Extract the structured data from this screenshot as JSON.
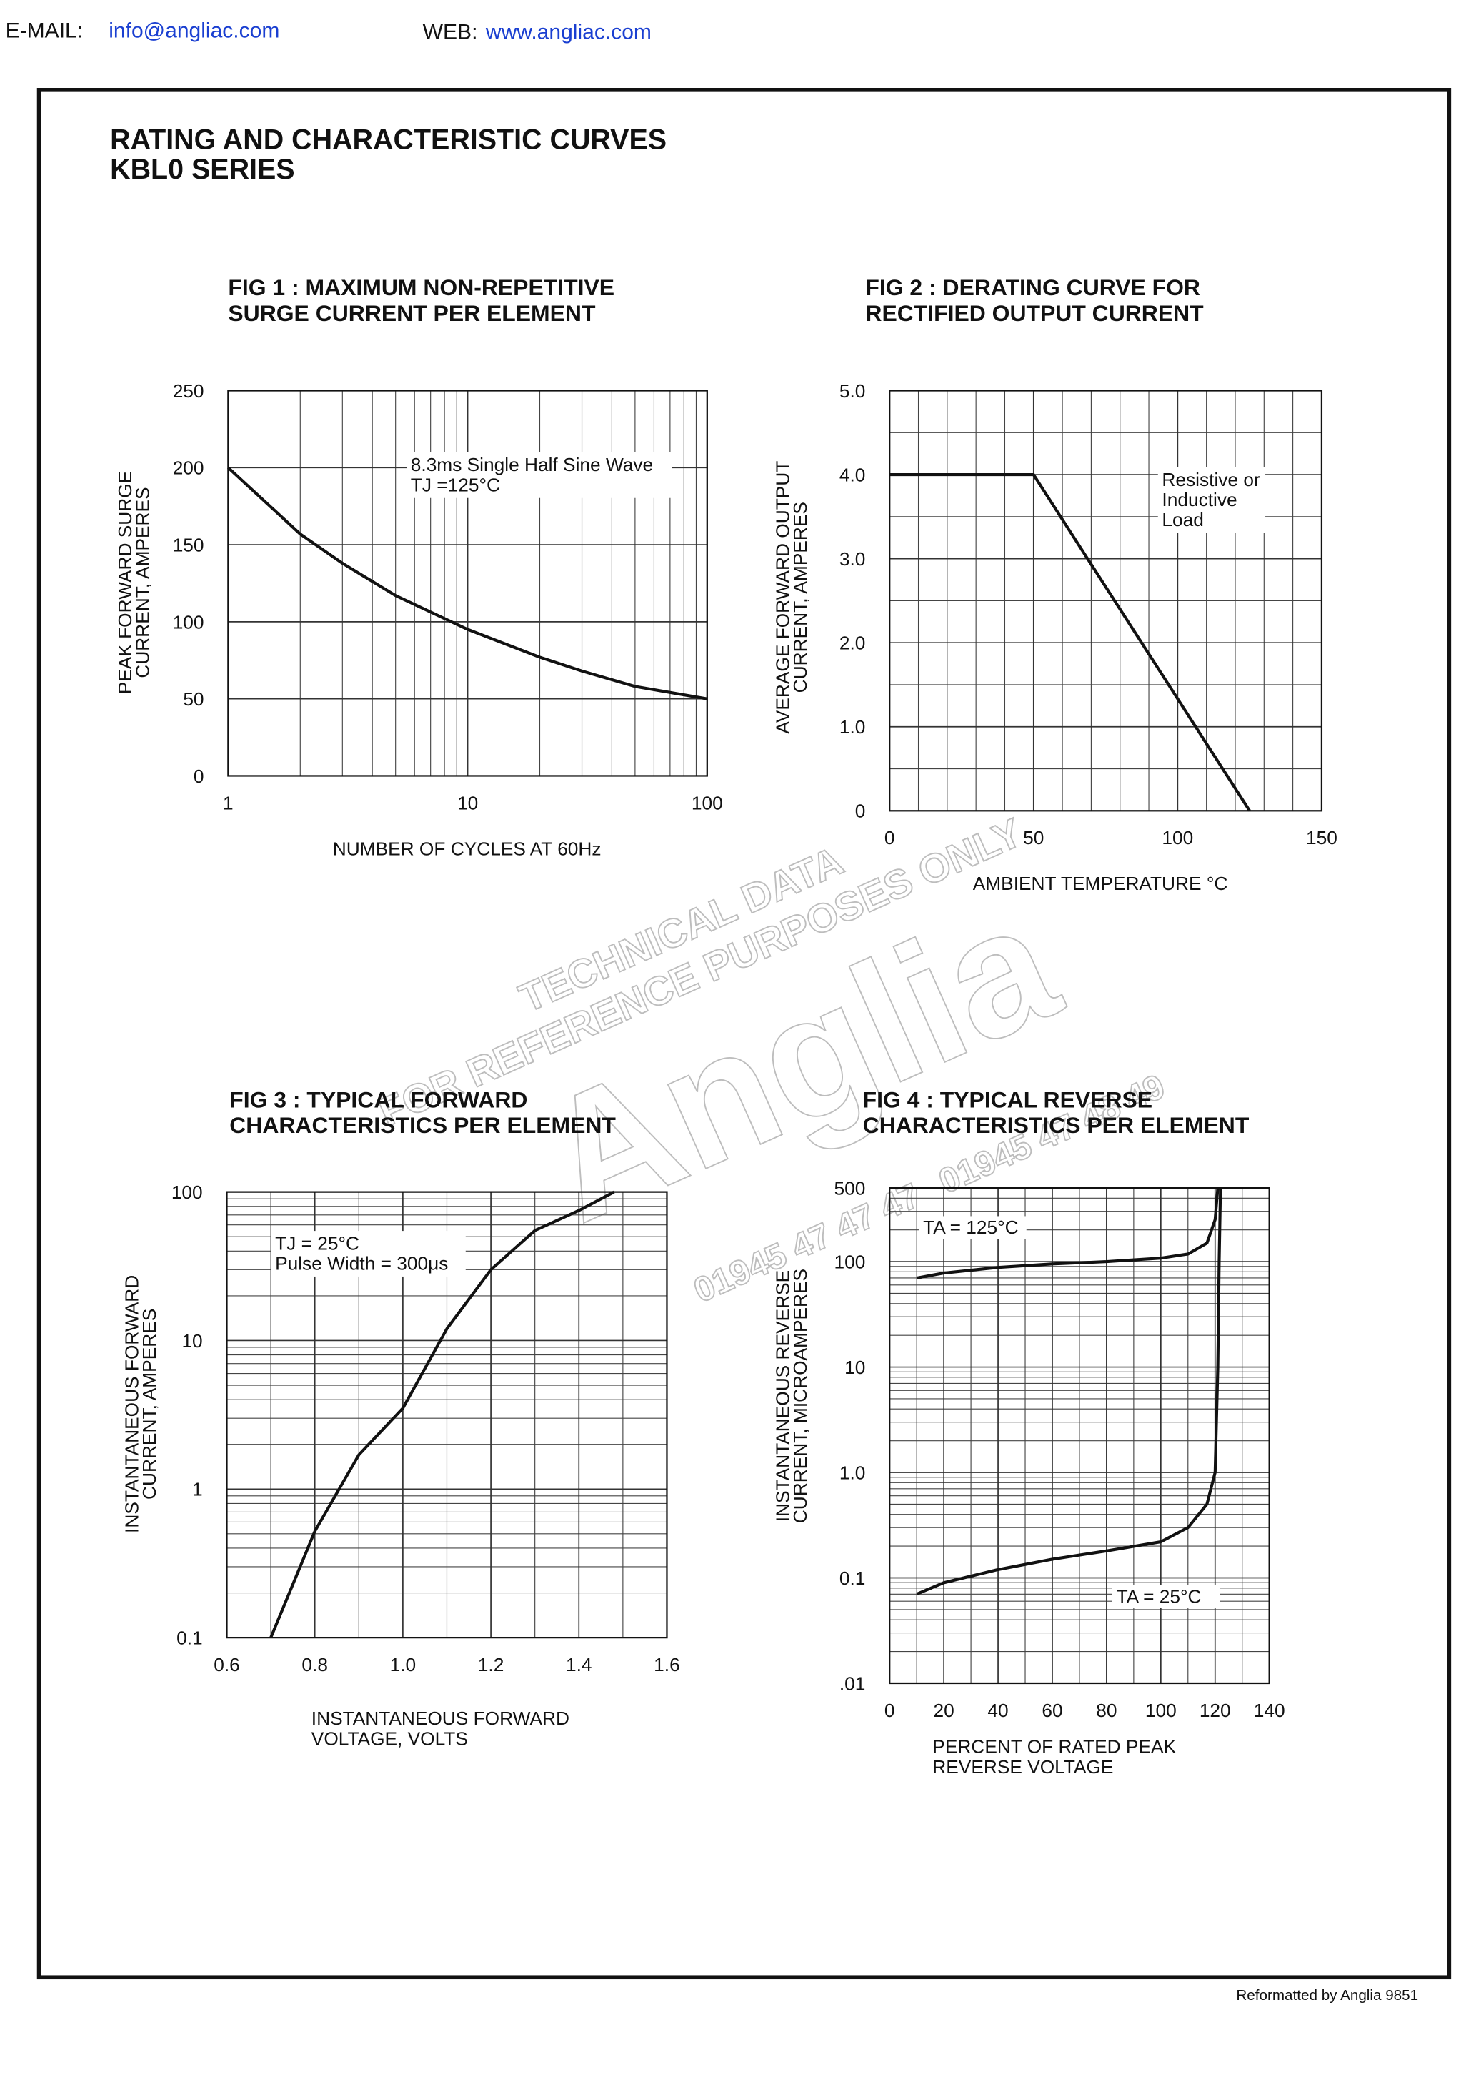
{
  "header": {
    "email_label": "E-MAIL:",
    "email": "info@angliac.com",
    "web_label": "WEB:",
    "web": "www.angliac.com"
  },
  "heading": [
    "RATING  AND  CHARACTERISTIC  CURVES",
    "KBL0  SERIES"
  ],
  "watermark": [
    "TECHNICAL DATA",
    "FOR REFERENCE PURPOSES ONLY",
    "Anglia",
    "01945 47 47 47",
    "01945 47 48 49"
  ],
  "footer": "Reformatted by Anglia 9851",
  "chart_data": [
    {
      "type": "line",
      "title": [
        "FIG  1 : MAXIMUM  NON-REPETITIVE",
        "SURGE  CURRENT  PER ELEMENT"
      ],
      "xlabel": [
        "NUMBER  OF  CYCLES  AT  60Hz"
      ],
      "ylabel": [
        "PEAK  FORWARD  SURGE",
        "CURRENT,  AMPERES"
      ],
      "xscale": "log",
      "yscale": "linear",
      "xlim": [
        1,
        100
      ],
      "ylim": [
        0,
        250
      ],
      "xticks": [
        1,
        10,
        100
      ],
      "yticks": [
        0,
        50,
        100,
        150,
        200,
        250
      ],
      "grid": true,
      "annotation": [
        "8.3ms Single Half Sine Wave",
        "TJ =125°C"
      ],
      "series": [
        {
          "color": "#111111",
          "x": [
            1,
            2,
            3,
            5,
            10,
            20,
            30,
            50,
            100
          ],
          "values": [
            200,
            157,
            138,
            117,
            95,
            77,
            68,
            58,
            50
          ]
        }
      ]
    },
    {
      "type": "line",
      "title": [
        "FIG  2 : DERATING  CURVE  FOR",
        "RECTIFIED  OUTPUT  CURRENT"
      ],
      "xlabel": [
        "AMBIENT  TEMPERATURE  °C"
      ],
      "ylabel": [
        "AVERAGE  FORWARD  OUTPUT",
        "CURRENT,  AMPERES"
      ],
      "xscale": "linear",
      "yscale": "linear",
      "xlim": [
        0,
        150
      ],
      "ylim": [
        0,
        5
      ],
      "xticks": [
        0,
        50,
        100,
        150
      ],
      "yticks": [
        0,
        {
          "value": 1,
          "label": "1.0"
        },
        {
          "value": 2,
          "label": "2.0"
        },
        {
          "value": 3,
          "label": "3.0"
        },
        {
          "value": 4,
          "label": "4.0"
        },
        {
          "value": 5,
          "label": "5.0"
        }
      ],
      "grid": true,
      "annotation": [
        "Resistive or",
        "Inductive",
        "Load"
      ],
      "series": [
        {
          "color": "#111111",
          "x": [
            0,
            50,
            125
          ],
          "values": [
            4,
            4,
            0
          ]
        }
      ]
    },
    {
      "type": "line",
      "title": [
        "FIG  3 : TYPICAL  FORWARD",
        "CHARACTERISTICS PER ELEMENT"
      ],
      "xlabel": [
        "INSTANTANEOUS  FORWARD",
        "VOLTAGE,  VOLTS"
      ],
      "ylabel": [
        "INSTANTANEOUS  FORWARD",
        "CURRENT,  AMPERES"
      ],
      "xscale": "linear",
      "yscale": "log",
      "xlim": [
        0.6,
        1.6
      ],
      "ylim": [
        0.1,
        100
      ],
      "xticks": [
        0.6,
        0.8,
        {
          "value": 1,
          "label": "1.0"
        },
        1.2,
        1.4,
        1.6
      ],
      "yticks": [
        0.1,
        1,
        10,
        100
      ],
      "grid": true,
      "annotation": [
        "TJ = 25°C",
        "Pulse Width = 300μs"
      ],
      "series": [
        {
          "color": "#111111",
          "x": [
            0.7,
            0.8,
            0.9,
            1.0,
            1.1,
            1.2,
            1.3,
            1.4,
            1.48
          ],
          "values": [
            0.1,
            0.52,
            1.7,
            3.5,
            12,
            30,
            55,
            75,
            100
          ]
        }
      ]
    },
    {
      "type": "line",
      "title": [
        "FIG  4 : TYPICAL  REVERSE",
        "CHARACTERISTICS  PER  ELEMENT"
      ],
      "xlabel": [
        "PERCENT  OF  RATED  PEAK",
        "REVERSE  VOLTAGE"
      ],
      "ylabel": [
        "INSTANTANEOUS REVERSE",
        "CURRENT, MICROAMPERES"
      ],
      "xscale": "linear",
      "yscale": "log",
      "xlim": [
        0,
        140
      ],
      "ylim": [
        0.01,
        500
      ],
      "xticks": [
        0,
        20,
        40,
        60,
        80,
        100,
        120,
        140
      ],
      "yticks": [
        {
          "value": 0.01,
          "label": ".01"
        },
        0.1,
        {
          "value": 1,
          "label": "1.0"
        },
        10,
        100,
        500
      ],
      "grid": true,
      "series": [
        {
          "name": "TA = 125°C",
          "color": "#111111",
          "x": [
            10,
            20,
            40,
            60,
            80,
            100,
            110,
            117,
            120,
            121
          ],
          "values": [
            70,
            78,
            88,
            95,
            100,
            108,
            118,
            150,
            250,
            500
          ]
        },
        {
          "name": "TA = 25°C",
          "color": "#111111",
          "x": [
            10,
            20,
            40,
            60,
            80,
            100,
            110,
            117,
            120,
            121,
            121.5,
            122
          ],
          "values": [
            0.07,
            0.09,
            0.12,
            0.15,
            0.18,
            0.22,
            0.3,
            0.5,
            1,
            10,
            100,
            500
          ]
        }
      ]
    }
  ]
}
